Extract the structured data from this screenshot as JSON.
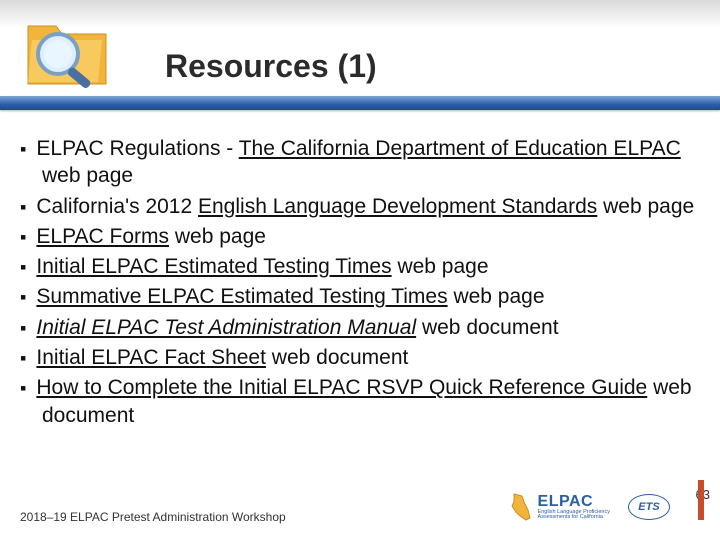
{
  "header": {
    "title": "Resources (1)",
    "bar_gradient_top": "#7ca6d8",
    "bar_gradient_bottom": "#1f4c86"
  },
  "folder_icon": {
    "folder_color": "#f2b43a",
    "handle_color": "#4a6fa0",
    "glass_color": "#dceeff"
  },
  "bullets": [
    {
      "prefix": "ELPAC Regulations - ",
      "link": "The California Department of Education ELPAC",
      "suffix": " web page",
      "italic": false
    },
    {
      "prefix": "California's 2012 ",
      "link": "English Language Development Standards",
      "suffix": " web page",
      "italic": false
    },
    {
      "prefix": "",
      "link": "ELPAC Forms",
      "suffix": " web page",
      "italic": false
    },
    {
      "prefix": "",
      "link": "Initial ELPAC Estimated Testing Times",
      "suffix": " web page",
      "italic": false
    },
    {
      "prefix": "",
      "link": "Summative ELPAC Estimated Testing Times",
      "suffix": " web page",
      "italic": false
    },
    {
      "prefix": "",
      "link": "Initial ELPAC Test Administration Manual",
      "suffix": " web document",
      "italic": true
    },
    {
      "prefix": "",
      "link": "Initial ELPAC Fact Sheet",
      "suffix": " web document",
      "italic": false
    },
    {
      "prefix": "",
      "link": "How to Complete the Initial ELPAC RSVP Quick Reference Guide",
      "suffix": " web document",
      "italic": false
    }
  ],
  "footer": {
    "text": "2018–19 ELPAC Pretest Administration Workshop",
    "slide_number": "63",
    "elpac_label": "ELPAC",
    "elpac_sub1": "English Language Proficiency",
    "elpac_sub2": "Assessments for California",
    "ets_label": "ETS",
    "accent_color": "#c94b2e",
    "elpac_color": "#2a5fa4"
  }
}
